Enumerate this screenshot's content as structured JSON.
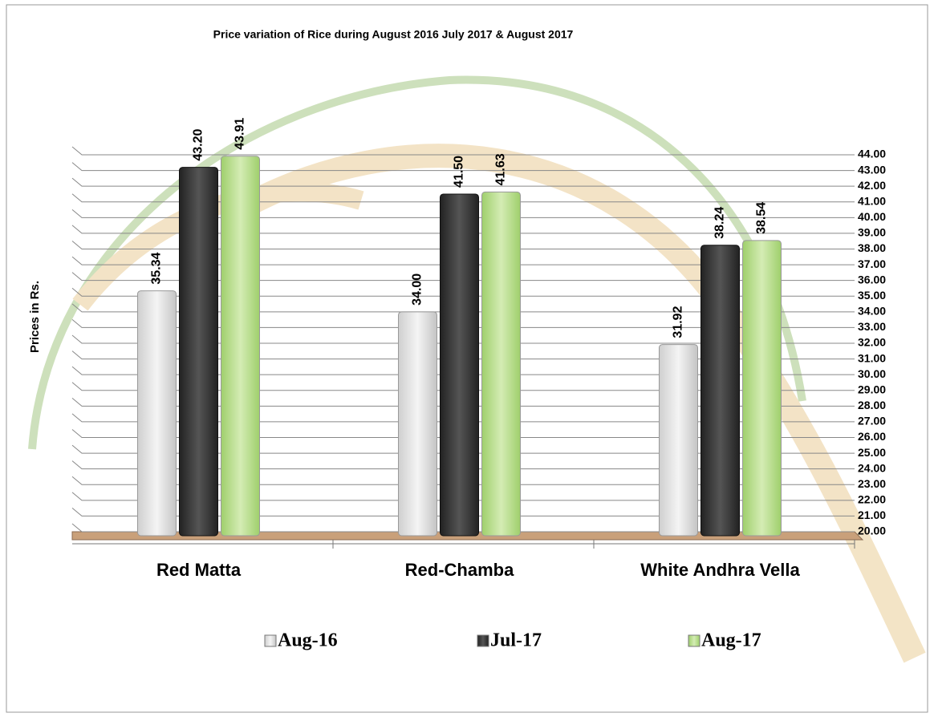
{
  "chart_data": {
    "type": "bar",
    "title": "Price variation of Rice during  August  2016  July  2017 &  August 2017",
    "y_label": "Prices in Rs.",
    "categories": [
      "Red Matta",
      "Red-Chamba",
      "White Andhra Vella"
    ],
    "series": [
      {
        "name": "Aug-16",
        "color": "#e6e6e6",
        "values": [
          35.34,
          34.0,
          31.92
        ],
        "value_labels": [
          "35.34",
          "34.00",
          "31.92"
        ]
      },
      {
        "name": "Jul-17",
        "color": "#3c3c3c",
        "values": [
          43.2,
          41.5,
          38.24
        ],
        "value_labels": [
          "43.20",
          "41.50",
          "38.24"
        ]
      },
      {
        "name": "Aug-17",
        "color": "#b8dc8c",
        "values": [
          43.91,
          41.63,
          38.54
        ],
        "value_labels": [
          "43.91",
          "41.63",
          "38.54"
        ]
      }
    ],
    "ylim": [
      20,
      44
    ],
    "yticks": [
      {
        "value": 20,
        "label": "20.00"
      },
      {
        "value": 21,
        "label": "21.00"
      },
      {
        "value": 22,
        "label": "22.00"
      },
      {
        "value": 23,
        "label": "23.00"
      },
      {
        "value": 24,
        "label": "24.00"
      },
      {
        "value": 25,
        "label": "25.00"
      },
      {
        "value": 26,
        "label": "26.00"
      },
      {
        "value": 27,
        "label": "27.00"
      },
      {
        "value": 28,
        "label": "28.00"
      },
      {
        "value": 29,
        "label": "29.00"
      },
      {
        "value": 30,
        "label": "30.00"
      },
      {
        "value": 31,
        "label": "31.00"
      },
      {
        "value": 32,
        "label": "32.00"
      },
      {
        "value": 33,
        "label": "33.00"
      },
      {
        "value": 34,
        "label": "34.00"
      },
      {
        "value": 35,
        "label": "35.00"
      },
      {
        "value": 36,
        "label": "36.00"
      },
      {
        "value": 37,
        "label": "37.00"
      },
      {
        "value": 38,
        "label": "38.00"
      },
      {
        "value": 39,
        "label": "39.00"
      },
      {
        "value": 40,
        "label": "40.00"
      },
      {
        "value": 41,
        "label": "41.00"
      },
      {
        "value": 42,
        "label": "42.00"
      },
      {
        "value": 43,
        "label": "43.00"
      },
      {
        "value": 44,
        "label": "44.00"
      }
    ],
    "grid": true
  }
}
